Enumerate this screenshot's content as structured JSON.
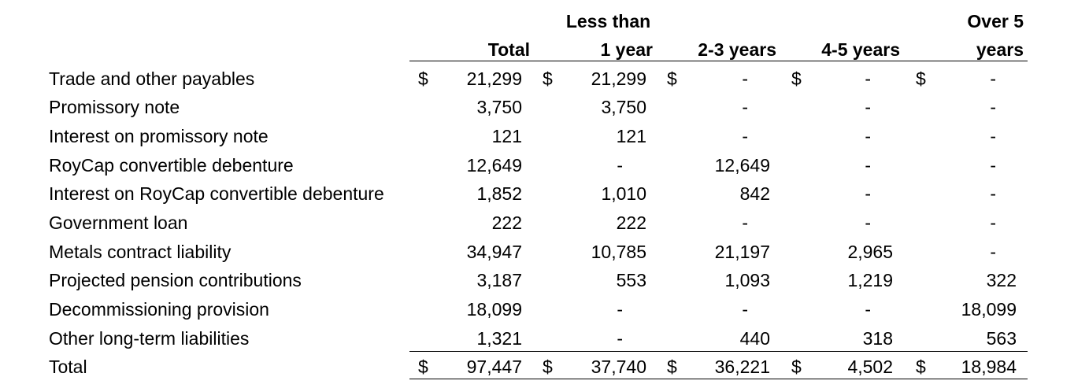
{
  "headers": {
    "total": "Total",
    "less_than_line1": "Less than",
    "less_than_line2": "1 year",
    "y23": "2-3 years",
    "y45": "4-5 years",
    "over_line1": "Over 5",
    "over_line2": "years"
  },
  "currency_symbol": "$",
  "rows": [
    {
      "label": "Trade and other payables",
      "total": "21,299",
      "lt1": "21,299",
      "y23": "-",
      "y45": "-",
      "over5": "-",
      "dollar": true
    },
    {
      "label": "Promissory note",
      "total": "3,750",
      "lt1": "3,750",
      "y23": "-",
      "y45": "-",
      "over5": "-",
      "dollar": false
    },
    {
      "label": "Interest on promissory note",
      "total": "121",
      "lt1": "121",
      "y23": "-",
      "y45": "-",
      "over5": "-",
      "dollar": false
    },
    {
      "label": "RoyCap convertible debenture",
      "total": "12,649",
      "lt1": "-",
      "y23": "12,649",
      "y45": "-",
      "over5": "-",
      "dollar": false
    },
    {
      "label": "Interest on RoyCap convertible debenture",
      "total": "1,852",
      "lt1": "1,010",
      "y23": "842",
      "y45": "-",
      "over5": "-",
      "dollar": false
    },
    {
      "label": "Government loan",
      "total": "222",
      "lt1": "222",
      "y23": "-",
      "y45": "-",
      "over5": "-",
      "dollar": false
    },
    {
      "label": "Metals contract liability",
      "total": "34,947",
      "lt1": "10,785",
      "y23": "21,197",
      "y45": "2,965",
      "over5": "-",
      "dollar": false
    },
    {
      "label": "Projected pension contributions",
      "total": "3,187",
      "lt1": "553",
      "y23": "1,093",
      "y45": "1,219",
      "over5": "322",
      "dollar": false
    },
    {
      "label": "Decommissioning provision",
      "total": "18,099",
      "lt1": "-",
      "y23": "-",
      "y45": "-",
      "over5": "18,099",
      "dollar": false
    },
    {
      "label": "Other long-term liabilities",
      "total": "1,321",
      "lt1": "-",
      "y23": "440",
      "y45": "318",
      "over5": "563",
      "dollar": false
    },
    {
      "label": "Total",
      "total": "97,447",
      "lt1": "37,740",
      "y23": "36,221",
      "y45": "4,502",
      "over5": "18,984",
      "dollar": true
    }
  ]
}
